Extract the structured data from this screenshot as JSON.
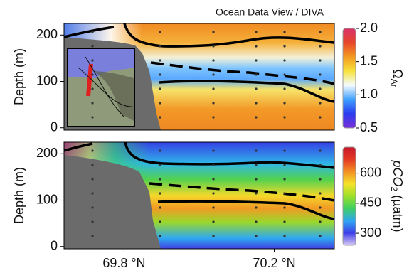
{
  "chart_data": [
    {
      "type": "section",
      "title": "Ocean Data View / DIVA",
      "y_label": "Depth (m)",
      "xlim": [
        69.64,
        70.36
      ],
      "ylim": [
        -5,
        225
      ],
      "yticks": [
        0,
        100,
        200
      ],
      "colorbar": {
        "label": "Ω",
        "label_sub": "Ar",
        "lim": [
          0.5,
          2.0
        ],
        "ticks": [
          0.5,
          {
            "value": 1,
            "label": "1.0"
          },
          1.5,
          {
            "value": 2,
            "label": "2.0"
          }
        ],
        "colors": [
          "#7a2fd6",
          "#2a3cf0",
          "#3fa0ff",
          "#f4fbff",
          "#f7e33c",
          "#f39a1e",
          "#e8452a",
          "#d8306a"
        ]
      }
    },
    {
      "type": "section",
      "y_label": "Depth (m)",
      "xlim": [
        69.64,
        70.36
      ],
      "ylim": [
        -5,
        225
      ],
      "yticks": [
        0,
        100,
        200
      ],
      "xticks": [
        {
          "value": 69.8,
          "label": "69.8 °N"
        },
        {
          "value": 70.2,
          "label": "70.2 °N"
        }
      ],
      "colorbar": {
        "label": "pCO",
        "label_sub": "2",
        "label_rest": " (µatm)",
        "lim": [
          240,
          730
        ],
        "ticks": [
          300,
          450,
          600
        ],
        "colors": [
          "#d9c9f4",
          "#3d3fe8",
          "#2fa6f2",
          "#3ecf62",
          "#9be02a",
          "#f5e22a",
          "#f39022",
          "#e43a22",
          "#c8162a"
        ]
      }
    }
  ]
}
